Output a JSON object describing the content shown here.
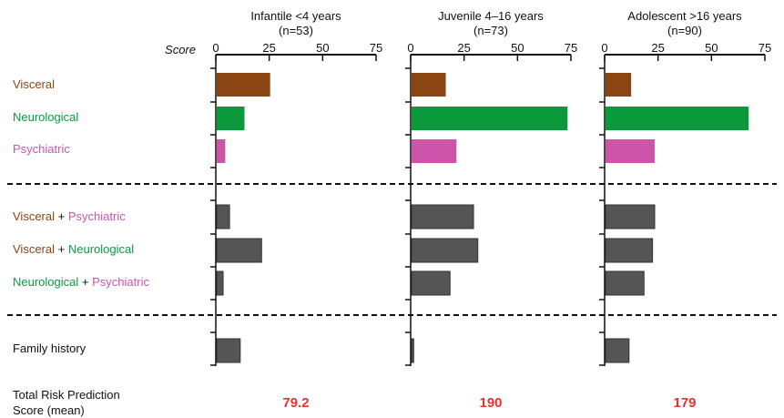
{
  "colors": {
    "visceral": "#8b4513",
    "neurological": "#0a9a3c",
    "psychiatric": "#cc55aa",
    "combined": "#555555",
    "total": "#e8312b",
    "text": "#111111"
  },
  "score_label": "Score",
  "row_labels": {
    "visceral": "Visceral",
    "neurological": "Neurological",
    "psychiatric": "Psychiatric",
    "plus": "+",
    "family_history": "Family history",
    "total_line1": "Total Risk Prediction",
    "total_line2": "Score (mean)"
  },
  "chart_data": {
    "type": "bar",
    "orientation": "horizontal",
    "categories": [
      "Visceral",
      "Neurological",
      "Psychiatric",
      "Visceral + Psychiatric",
      "Visceral + Neurological",
      "Neurological + Psychiatric",
      "Family history"
    ],
    "xlim": [
      0,
      75
    ],
    "xticks": [
      0,
      25,
      50,
      75
    ],
    "panels": [
      {
        "title_line1": "Infantile <4 years",
        "title_line2": "(n=53)",
        "values": [
          25,
          13,
          4,
          6,
          21,
          3,
          11
        ],
        "total_score": "79.2"
      },
      {
        "title_line1": "Juvenile 4–16 years",
        "title_line2": "(n=73)",
        "values": [
          16,
          73,
          21,
          29,
          31,
          18,
          1
        ],
        "total_score": "190"
      },
      {
        "title_line1": "Adolescent >16 years",
        "title_line2": "(n=90)",
        "values": [
          12,
          67,
          23,
          23,
          22,
          18,
          11
        ],
        "total_score": "179"
      }
    ]
  }
}
